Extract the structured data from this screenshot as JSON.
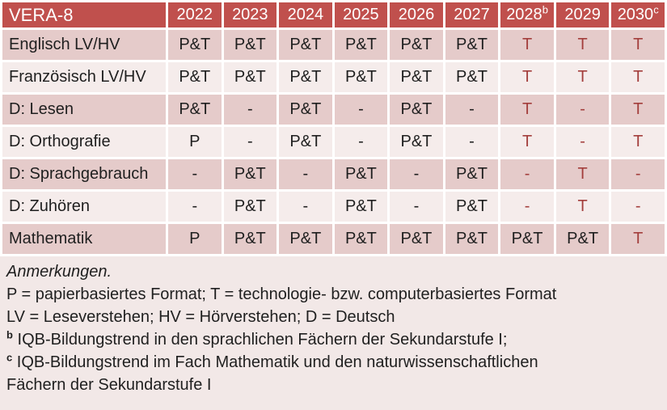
{
  "colors": {
    "header_bg": "#C0504D",
    "band_dark": "#E5CBCA",
    "band_light": "#F5ECEB",
    "notes_bg": "#F2E8E7",
    "red_text": "#A33E3C",
    "header_text": "#FFFFFF",
    "body_text": "#1F1F1F"
  },
  "table": {
    "corner_label": "VERA-8",
    "years": [
      {
        "label": "2022",
        "sup": ""
      },
      {
        "label": "2023",
        "sup": ""
      },
      {
        "label": "2024",
        "sup": ""
      },
      {
        "label": "2025",
        "sup": ""
      },
      {
        "label": "2026",
        "sup": ""
      },
      {
        "label": "2027",
        "sup": ""
      },
      {
        "label": "2028",
        "sup": "b"
      },
      {
        "label": "2029",
        "sup": ""
      },
      {
        "label": "2030",
        "sup": "c"
      }
    ],
    "rows": [
      {
        "label": "Englisch LV/HV",
        "cells": [
          {
            "v": "P&T",
            "red": false
          },
          {
            "v": "P&T",
            "red": false
          },
          {
            "v": "P&T",
            "red": false
          },
          {
            "v": "P&T",
            "red": false
          },
          {
            "v": "P&T",
            "red": false
          },
          {
            "v": "P&T",
            "red": false
          },
          {
            "v": "T",
            "red": true
          },
          {
            "v": "T",
            "red": true
          },
          {
            "v": "T",
            "red": true
          }
        ]
      },
      {
        "label": "Französisch LV/HV",
        "cells": [
          {
            "v": "P&T",
            "red": false
          },
          {
            "v": "P&T",
            "red": false
          },
          {
            "v": "P&T",
            "red": false
          },
          {
            "v": "P&T",
            "red": false
          },
          {
            "v": "P&T",
            "red": false
          },
          {
            "v": "P&T",
            "red": false
          },
          {
            "v": "T",
            "red": true
          },
          {
            "v": "T",
            "red": true
          },
          {
            "v": "T",
            "red": true
          }
        ]
      },
      {
        "label": "D: Lesen",
        "cells": [
          {
            "v": "P&T",
            "red": false
          },
          {
            "v": "-",
            "red": false
          },
          {
            "v": "P&T",
            "red": false
          },
          {
            "v": "-",
            "red": false
          },
          {
            "v": "P&T",
            "red": false
          },
          {
            "v": "-",
            "red": false
          },
          {
            "v": "T",
            "red": true
          },
          {
            "v": "-",
            "red": true
          },
          {
            "v": "T",
            "red": true
          }
        ]
      },
      {
        "label": "D: Orthografie",
        "cells": [
          {
            "v": "P",
            "red": false
          },
          {
            "v": "-",
            "red": false
          },
          {
            "v": "P&T",
            "red": false
          },
          {
            "v": "-",
            "red": false
          },
          {
            "v": "P&T",
            "red": false
          },
          {
            "v": "-",
            "red": false
          },
          {
            "v": "T",
            "red": true
          },
          {
            "v": "-",
            "red": true
          },
          {
            "v": "T",
            "red": true
          }
        ]
      },
      {
        "label": "D: Sprachgebrauch",
        "cells": [
          {
            "v": "-",
            "red": false
          },
          {
            "v": "P&T",
            "red": false
          },
          {
            "v": "-",
            "red": false
          },
          {
            "v": "P&T",
            "red": false
          },
          {
            "v": "-",
            "red": false
          },
          {
            "v": "P&T",
            "red": false
          },
          {
            "v": "-",
            "red": true
          },
          {
            "v": "T",
            "red": true
          },
          {
            "v": "-",
            "red": true
          }
        ]
      },
      {
        "label": "D: Zuhören",
        "cells": [
          {
            "v": "-",
            "red": false
          },
          {
            "v": "P&T",
            "red": false
          },
          {
            "v": "-",
            "red": false
          },
          {
            "v": "P&T",
            "red": false
          },
          {
            "v": "-",
            "red": false
          },
          {
            "v": "P&T",
            "red": false
          },
          {
            "v": "-",
            "red": true
          },
          {
            "v": "T",
            "red": true
          },
          {
            "v": "-",
            "red": true
          }
        ]
      },
      {
        "label": "Mathematik",
        "cells": [
          {
            "v": "P",
            "red": false
          },
          {
            "v": "P&T",
            "red": false
          },
          {
            "v": "P&T",
            "red": false
          },
          {
            "v": "P&T",
            "red": false
          },
          {
            "v": "P&T",
            "red": false
          },
          {
            "v": "P&T",
            "red": false
          },
          {
            "v": "P&T",
            "red": false
          },
          {
            "v": "P&T",
            "red": false
          },
          {
            "v": "T",
            "red": true
          }
        ]
      }
    ]
  },
  "notes": {
    "title": "Anmerkungen.",
    "formats": "P = papierbasiertes Format; T = technologie- bzw. computerbasiertes Format",
    "abbreviations": "LV = Leseverstehen; HV = Hörverstehen; D = Deutsch",
    "note_b": {
      "marker": "b",
      "text": "IQB-Bildungstrend in den sprachlichen Fächern der Sekundarstufe I;"
    },
    "note_c": {
      "marker": "c",
      "line1": "IQB-Bildungstrend im Fach Mathematik und den naturwissenschaftlichen",
      "line2": "Fächern der Sekundarstufe I"
    }
  }
}
